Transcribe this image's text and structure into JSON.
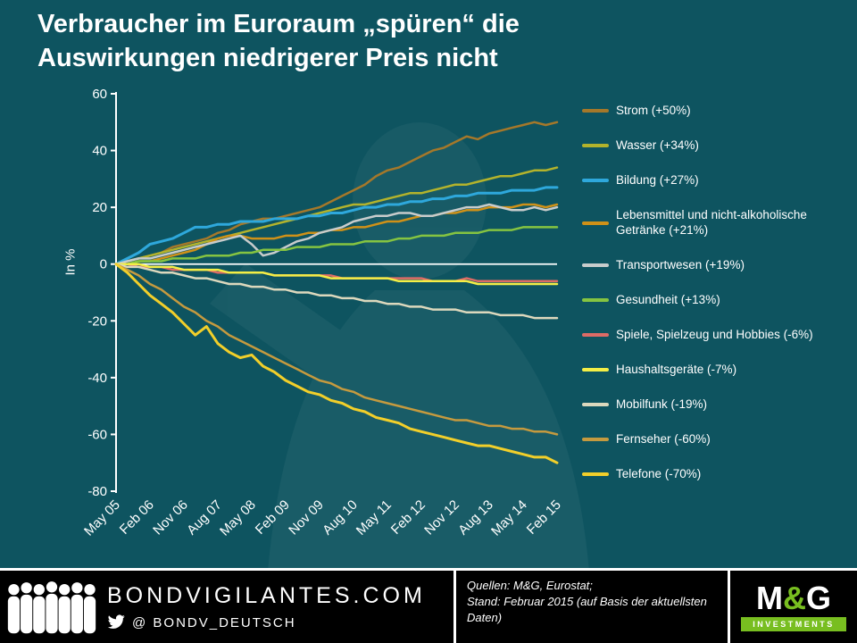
{
  "title": {
    "lines": [
      "Verbraucher im Euroraum „spüren“ die",
      "Auswirkungen niedrigerer Preis nicht"
    ]
  },
  "colors": {
    "background": "#0e5460",
    "axis": "#ffffff",
    "mg_green": "#78be20",
    "footer_bg": "#000000"
  },
  "chart_data": {
    "type": "line",
    "title": "",
    "xlabel": "",
    "ylabel": "In %",
    "ylim": [
      -80,
      60
    ],
    "yticks": [
      60,
      40,
      20,
      0,
      -20,
      -40,
      -60,
      -80
    ],
    "x_tick_labels": [
      "May 05",
      "Feb 06",
      "Nov 06",
      "Aug 07",
      "May 08",
      "Feb 09",
      "Nov 09",
      "Aug 10",
      "May 11",
      "Feb 12",
      "Nov 12",
      "Aug 13",
      "May 14",
      "Feb 15"
    ],
    "x_months_per_point": 3,
    "x_months_total": 117,
    "grid": false,
    "legend_position": "right",
    "series": [
      {
        "key": "strom",
        "name": "Strom (+50%)",
        "color": "#a5782a",
        "values": [
          0,
          1,
          2,
          3,
          4,
          6,
          7,
          8,
          9,
          11,
          12,
          14,
          15,
          16,
          16,
          17,
          18,
          19,
          20,
          22,
          24,
          26,
          28,
          31,
          33,
          34,
          36,
          38,
          40,
          41,
          43,
          45,
          44,
          46,
          47,
          48,
          49,
          50,
          49,
          50
        ]
      },
      {
        "key": "wasser",
        "name": "Wasser (+34%)",
        "color": "#b3b32c",
        "values": [
          0,
          1,
          2,
          3,
          4,
          5,
          6,
          7,
          8,
          9,
          10,
          11,
          12,
          13,
          14,
          15,
          16,
          17,
          18,
          19,
          20,
          21,
          21,
          22,
          23,
          24,
          25,
          25,
          26,
          27,
          28,
          28,
          29,
          30,
          31,
          31,
          32,
          33,
          33,
          34
        ]
      },
      {
        "key": "bildung",
        "name": "Bildung (+27%)",
        "color": "#2ea8dc",
        "width": 3,
        "values": [
          0,
          2,
          4,
          7,
          8,
          9,
          11,
          13,
          13,
          14,
          14,
          15,
          15,
          15,
          16,
          16,
          16,
          17,
          17,
          18,
          18,
          19,
          20,
          20,
          21,
          21,
          22,
          22,
          23,
          23,
          24,
          24,
          25,
          25,
          25,
          26,
          26,
          26,
          27,
          27
        ]
      },
      {
        "key": "lebensmittel",
        "name": "Lebensmittel und nicht-alkoholische Getränke (+21%)",
        "color": "#cf9118",
        "values": [
          0,
          0,
          1,
          1,
          2,
          3,
          4,
          5,
          7,
          9,
          10,
          10,
          9,
          9,
          9,
          10,
          10,
          11,
          11,
          12,
          12,
          13,
          13,
          14,
          15,
          15,
          16,
          17,
          17,
          18,
          18,
          19,
          19,
          20,
          20,
          20,
          21,
          21,
          20,
          21
        ]
      },
      {
        "key": "transportwesen",
        "name": "Transportwesen (+19%)",
        "color": "#c8cccc",
        "values": [
          0,
          1,
          2,
          2,
          3,
          4,
          5,
          6,
          7,
          8,
          9,
          10,
          7,
          3,
          4,
          6,
          8,
          9,
          11,
          12,
          13,
          15,
          16,
          17,
          17,
          18,
          18,
          17,
          17,
          18,
          19,
          20,
          20,
          21,
          20,
          19,
          19,
          20,
          19,
          20
        ]
      },
      {
        "key": "gesundheit",
        "name": "Gesundheit (+13%)",
        "color": "#85c441",
        "values": [
          0,
          0,
          1,
          1,
          1,
          2,
          2,
          2,
          3,
          3,
          3,
          4,
          4,
          5,
          5,
          5,
          6,
          6,
          6,
          7,
          7,
          7,
          8,
          8,
          8,
          9,
          9,
          10,
          10,
          10,
          11,
          11,
          11,
          12,
          12,
          12,
          13,
          13,
          13,
          13
        ]
      },
      {
        "key": "spiele",
        "name": "Spiele, Spielzeug und Hobbies (-6%)",
        "color": "#dd6b66",
        "values": [
          0,
          0,
          -1,
          -1,
          -1,
          -2,
          -2,
          -2,
          -2,
          -3,
          -3,
          -3,
          -3,
          -3,
          -4,
          -4,
          -4,
          -4,
          -4,
          -4,
          -5,
          -5,
          -5,
          -5,
          -5,
          -5,
          -5,
          -5,
          -6,
          -6,
          -6,
          -5,
          -6,
          -6,
          -6,
          -6,
          -6,
          -6,
          -6,
          -6
        ]
      },
      {
        "key": "haushaltsgeraete",
        "name": "Haushaltsgeräte (-7%)",
        "color": "#f3ee46",
        "values": [
          0,
          0,
          0,
          -1,
          -1,
          -1,
          -2,
          -2,
          -2,
          -2,
          -3,
          -3,
          -3,
          -3,
          -4,
          -4,
          -4,
          -4,
          -4,
          -5,
          -5,
          -5,
          -5,
          -5,
          -5,
          -6,
          -6,
          -6,
          -6,
          -6,
          -6,
          -6,
          -7,
          -7,
          -7,
          -7,
          -7,
          -7,
          -7,
          -7
        ]
      },
      {
        "key": "mobilfunk",
        "name": "Mobilfunk (-19%)",
        "color": "#dcd8bd",
        "values": [
          0,
          -1,
          -1,
          -2,
          -3,
          -3,
          -4,
          -5,
          -5,
          -6,
          -7,
          -7,
          -8,
          -8,
          -9,
          -9,
          -10,
          -10,
          -11,
          -11,
          -12,
          -12,
          -13,
          -13,
          -14,
          -14,
          -15,
          -15,
          -16,
          -16,
          -16,
          -17,
          -17,
          -17,
          -18,
          -18,
          -18,
          -19,
          -19,
          -19
        ]
      },
      {
        "key": "fernseher",
        "name": "Fernseher (-60%)",
        "color": "#c59a3f",
        "values": [
          0,
          -2,
          -4,
          -7,
          -9,
          -12,
          -15,
          -17,
          -20,
          -22,
          -25,
          -27,
          -29,
          -31,
          -33,
          -35,
          -37,
          -39,
          -41,
          -42,
          -44,
          -45,
          -47,
          -48,
          -49,
          -50,
          -51,
          -52,
          -53,
          -54,
          -55,
          -55,
          -56,
          -57,
          -57,
          -58,
          -58,
          -59,
          -59,
          -60
        ]
      },
      {
        "key": "telefone",
        "name": "Telefone (-70%)",
        "color": "#f2cf2a",
        "width": 3,
        "values": [
          0,
          -3,
          -7,
          -11,
          -14,
          -17,
          -21,
          -25,
          -22,
          -28,
          -31,
          -33,
          -32,
          -36,
          -38,
          -41,
          -43,
          -45,
          -46,
          -48,
          -49,
          -51,
          -52,
          -54,
          -55,
          -56,
          -58,
          -59,
          -60,
          -61,
          -62,
          -63,
          -64,
          -64,
          -65,
          -66,
          -67,
          -68,
          -68,
          -70
        ]
      }
    ]
  },
  "footer": {
    "site": "BONDVIGILANTES.COM",
    "handle": "@  BONDV_DEUTSCH",
    "source": "Quellen: M&G, Eurostat;\nStand: Februar 2015 (auf Basis der aktuellsten Daten)",
    "logo": {
      "m": "M",
      "amp": "&",
      "g": "G",
      "sub": "INVESTMENTS"
    }
  }
}
